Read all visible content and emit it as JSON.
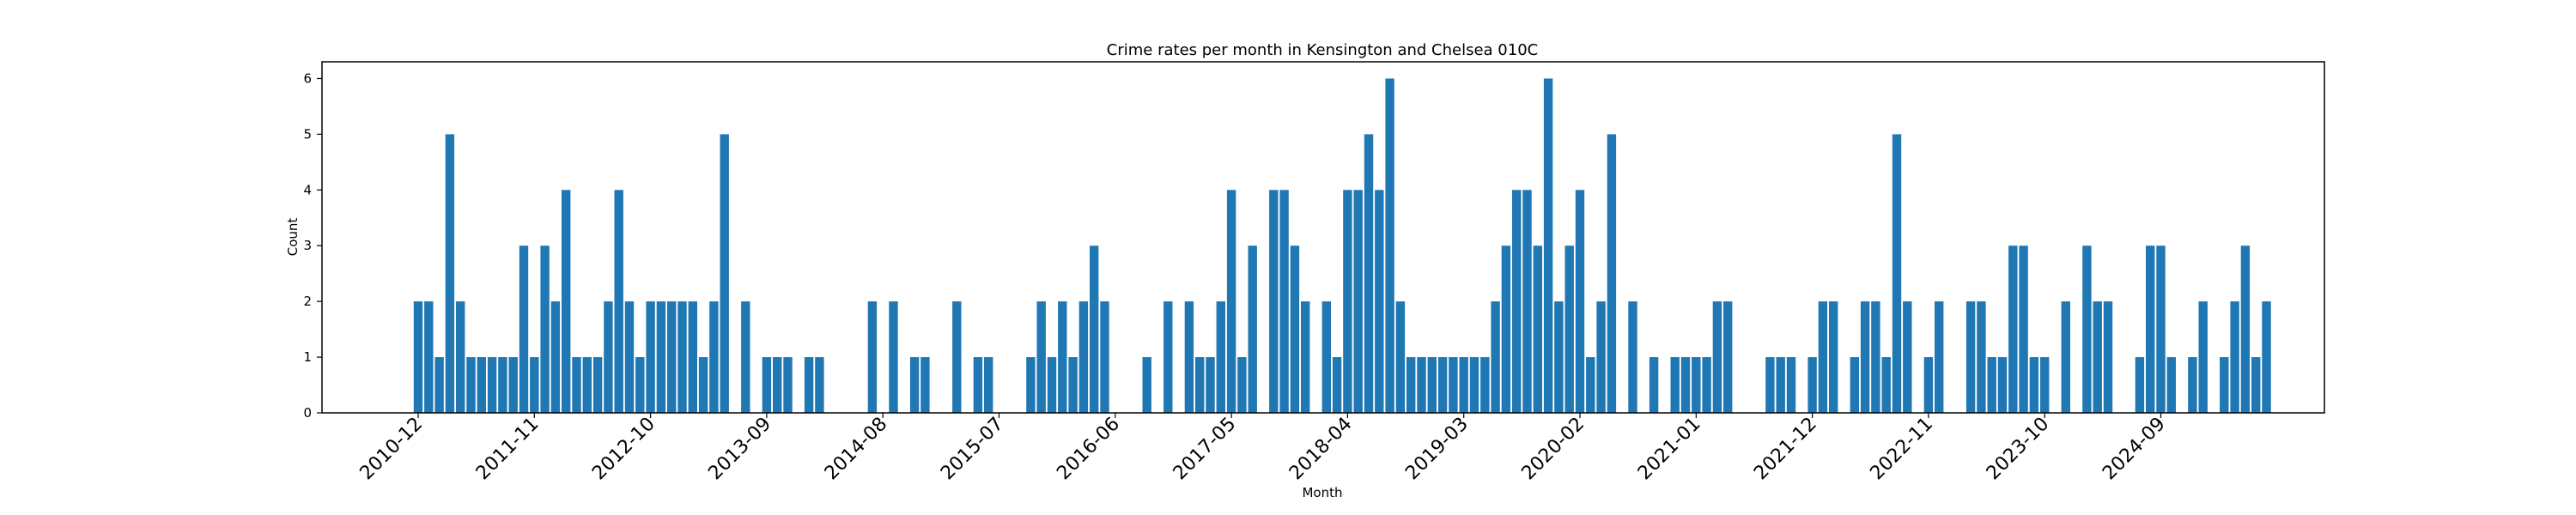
{
  "chart_data": {
    "type": "bar",
    "title": "Crime rates per month in Kensington and Chelsea 010C",
    "xlabel": "Month",
    "ylabel": "Count",
    "ylim": [
      0,
      6.3
    ],
    "yticks": [
      0,
      1,
      2,
      3,
      4,
      5,
      6
    ],
    "bar_color": "#1f77b4",
    "x_start": "2010-12",
    "xtick_labels": [
      "2010-12",
      "2011-11",
      "2012-10",
      "2013-09",
      "2014-08",
      "2015-07",
      "2016-06",
      "2017-05",
      "2018-04",
      "2019-03",
      "2020-02",
      "2021-01",
      "2021-12",
      "2022-11",
      "2023-10",
      "2024-09"
    ],
    "values": [
      2,
      2,
      1,
      5,
      2,
      1,
      1,
      1,
      1,
      1,
      3,
      1,
      3,
      2,
      4,
      1,
      1,
      1,
      2,
      4,
      2,
      1,
      2,
      2,
      2,
      2,
      2,
      1,
      2,
      5,
      0,
      2,
      0,
      1,
      1,
      1,
      0,
      1,
      1,
      0,
      0,
      0,
      0,
      2,
      0,
      2,
      0,
      1,
      1,
      0,
      0,
      2,
      0,
      1,
      1,
      0,
      0,
      0,
      1,
      2,
      1,
      2,
      1,
      2,
      3,
      2,
      0,
      0,
      0,
      1,
      0,
      2,
      0,
      2,
      1,
      1,
      2,
      4,
      1,
      3,
      0,
      4,
      4,
      3,
      2,
      0,
      2,
      1,
      4,
      4,
      5,
      4,
      6,
      2,
      1,
      1,
      1,
      1,
      1,
      1,
      1,
      1,
      2,
      3,
      4,
      4,
      3,
      6,
      2,
      3,
      4,
      1,
      2,
      5,
      0,
      2,
      0,
      1,
      0,
      1,
      1,
      1,
      1,
      2,
      2,
      0,
      0,
      0,
      1,
      1,
      1,
      0,
      1,
      2,
      2,
      0,
      1,
      2,
      2,
      1,
      5,
      2,
      0,
      1,
      2,
      0,
      0,
      2,
      2,
      1,
      1,
      3,
      3,
      1,
      1,
      0,
      2,
      0,
      3,
      2,
      2,
      0,
      0,
      1,
      3,
      3,
      1,
      0,
      1,
      2,
      0,
      1,
      2,
      3,
      1,
      2
    ]
  }
}
